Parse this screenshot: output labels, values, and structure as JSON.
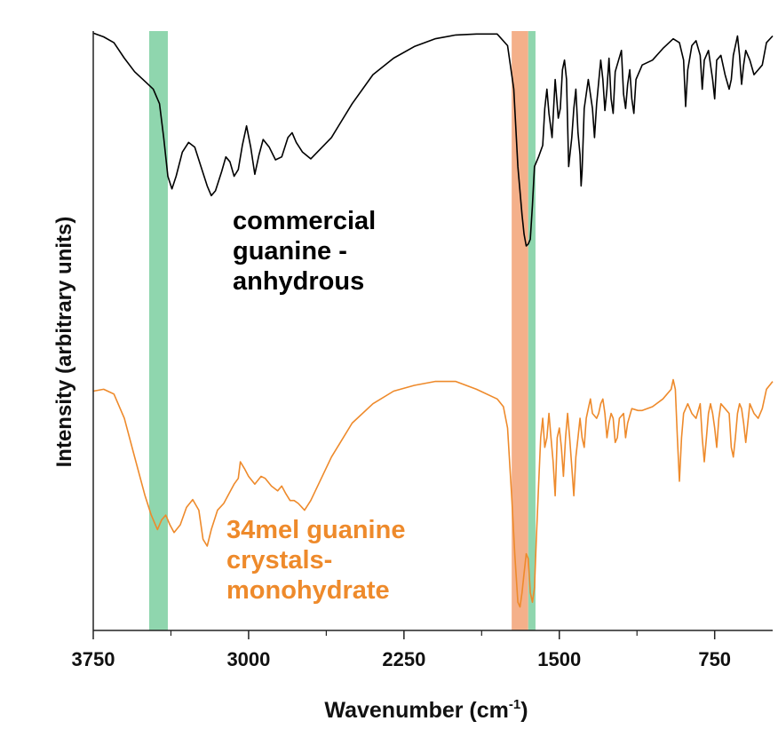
{
  "chart_data": {
    "type": "line",
    "xlabel": "Wavenumber (cm",
    "xlabel_sup": "-1",
    "xlabel_end": ")",
    "ylabel": "Intensity (arbitrary units)",
    "xlim": [
      3750,
      470
    ],
    "x_reversed": true,
    "major_ticks": [
      3750,
      3000,
      2250,
      1500,
      750
    ],
    "tick_labels": [
      "3750",
      "3000",
      "2250",
      "1500",
      "750"
    ],
    "minor_ticks": [
      3375,
      2625,
      1875,
      1125
    ],
    "highlight_bands": [
      {
        "from": 3480,
        "to": 3390,
        "color": "#8fd6ae"
      },
      {
        "from": 1730,
        "to": 1650,
        "color": "#f4b08a"
      },
      {
        "from": 1650,
        "to": 1615,
        "color": "#8fd6ae"
      }
    ],
    "annotations": [
      {
        "lines": [
          "commercial",
          "guanine -",
          "anhydrous"
        ],
        "color": "#000000"
      },
      {
        "lines": [
          "34mel guanine",
          "crystals-",
          "monohydrate"
        ],
        "color": "#ee8a2b"
      }
    ],
    "series": [
      {
        "color": "#000000",
        "points": [
          [
            3750,
            2
          ],
          [
            3700,
            6
          ],
          [
            3650,
            12
          ],
          [
            3600,
            28
          ],
          [
            3550,
            42
          ],
          [
            3500,
            52
          ],
          [
            3460,
            60
          ],
          [
            3430,
            75
          ],
          [
            3410,
            110
          ],
          [
            3390,
            150
          ],
          [
            3370,
            163
          ],
          [
            3350,
            150
          ],
          [
            3320,
            125
          ],
          [
            3290,
            115
          ],
          [
            3260,
            120
          ],
          [
            3230,
            140
          ],
          [
            3200,
            160
          ],
          [
            3180,
            170
          ],
          [
            3160,
            165
          ],
          [
            3130,
            145
          ],
          [
            3110,
            130
          ],
          [
            3090,
            135
          ],
          [
            3070,
            150
          ],
          [
            3050,
            143
          ],
          [
            3030,
            118
          ],
          [
            3010,
            98
          ],
          [
            2990,
            120
          ],
          [
            2970,
            148
          ],
          [
            2950,
            128
          ],
          [
            2930,
            112
          ],
          [
            2900,
            120
          ],
          [
            2870,
            133
          ],
          [
            2840,
            130
          ],
          [
            2810,
            110
          ],
          [
            2790,
            105
          ],
          [
            2770,
            115
          ],
          [
            2740,
            125
          ],
          [
            2700,
            132
          ],
          [
            2600,
            110
          ],
          [
            2500,
            75
          ],
          [
            2400,
            45
          ],
          [
            2300,
            28
          ],
          [
            2200,
            16
          ],
          [
            2100,
            8
          ],
          [
            2000,
            4
          ],
          [
            1900,
            3
          ],
          [
            1800,
            3
          ],
          [
            1750,
            15
          ],
          [
            1720,
            60
          ],
          [
            1700,
            140
          ],
          [
            1680,
            190
          ],
          [
            1670,
            210
          ],
          [
            1660,
            222
          ],
          [
            1650,
            220
          ],
          [
            1640,
            215
          ],
          [
            1630,
            180
          ],
          [
            1620,
            140
          ],
          [
            1600,
            130
          ],
          [
            1580,
            118
          ],
          [
            1570,
            80
          ],
          [
            1560,
            60
          ],
          [
            1550,
            85
          ],
          [
            1535,
            110
          ],
          [
            1520,
            50
          ],
          [
            1505,
            90
          ],
          [
            1495,
            80
          ],
          [
            1485,
            40
          ],
          [
            1475,
            30
          ],
          [
            1465,
            50
          ],
          [
            1455,
            140
          ],
          [
            1440,
            110
          ],
          [
            1430,
            80
          ],
          [
            1420,
            60
          ],
          [
            1410,
            105
          ],
          [
            1400,
            128
          ],
          [
            1395,
            160
          ],
          [
            1390,
            145
          ],
          [
            1380,
            80
          ],
          [
            1360,
            50
          ],
          [
            1340,
            80
          ],
          [
            1330,
            110
          ],
          [
            1320,
            75
          ],
          [
            1300,
            30
          ],
          [
            1290,
            50
          ],
          [
            1280,
            82
          ],
          [
            1270,
            60
          ],
          [
            1260,
            28
          ],
          [
            1250,
            70
          ],
          [
            1240,
            85
          ],
          [
            1230,
            42
          ],
          [
            1200,
            20
          ],
          [
            1190,
            65
          ],
          [
            1180,
            80
          ],
          [
            1170,
            55
          ],
          [
            1160,
            40
          ],
          [
            1150,
            70
          ],
          [
            1140,
            85
          ],
          [
            1130,
            50
          ],
          [
            1100,
            35
          ],
          [
            1050,
            30
          ],
          [
            1000,
            18
          ],
          [
            950,
            8
          ],
          [
            920,
            12
          ],
          [
            900,
            30
          ],
          [
            890,
            78
          ],
          [
            880,
            40
          ],
          [
            860,
            15
          ],
          [
            840,
            10
          ],
          [
            820,
            25
          ],
          [
            810,
            60
          ],
          [
            800,
            30
          ],
          [
            780,
            20
          ],
          [
            760,
            50
          ],
          [
            750,
            70
          ],
          [
            740,
            30
          ],
          [
            720,
            25
          ],
          [
            700,
            45
          ],
          [
            680,
            60
          ],
          [
            670,
            50
          ],
          [
            660,
            25
          ],
          [
            640,
            5
          ],
          [
            630,
            25
          ],
          [
            620,
            55
          ],
          [
            610,
            35
          ],
          [
            600,
            20
          ],
          [
            580,
            30
          ],
          [
            560,
            45
          ],
          [
            540,
            40
          ],
          [
            520,
            35
          ],
          [
            500,
            12
          ],
          [
            470,
            5
          ]
        ]
      },
      {
        "color": "#ee8a2b",
        "points": [
          [
            3750,
            372
          ],
          [
            3700,
            370
          ],
          [
            3650,
            375
          ],
          [
            3600,
            400
          ],
          [
            3550,
            440
          ],
          [
            3500,
            480
          ],
          [
            3470,
            500
          ],
          [
            3440,
            515
          ],
          [
            3420,
            505
          ],
          [
            3400,
            500
          ],
          [
            3380,
            510
          ],
          [
            3360,
            518
          ],
          [
            3330,
            510
          ],
          [
            3300,
            492
          ],
          [
            3270,
            484
          ],
          [
            3240,
            495
          ],
          [
            3220,
            525
          ],
          [
            3200,
            532
          ],
          [
            3180,
            515
          ],
          [
            3150,
            495
          ],
          [
            3120,
            488
          ],
          [
            3100,
            480
          ],
          [
            3070,
            468
          ],
          [
            3050,
            462
          ],
          [
            3040,
            445
          ],
          [
            3020,
            452
          ],
          [
            3000,
            460
          ],
          [
            2970,
            468
          ],
          [
            2940,
            460
          ],
          [
            2920,
            462
          ],
          [
            2890,
            470
          ],
          [
            2860,
            475
          ],
          [
            2840,
            470
          ],
          [
            2820,
            478
          ],
          [
            2800,
            485
          ],
          [
            2780,
            485
          ],
          [
            2760,
            488
          ],
          [
            2730,
            495
          ],
          [
            2700,
            485
          ],
          [
            2600,
            440
          ],
          [
            2500,
            405
          ],
          [
            2400,
            385
          ],
          [
            2300,
            372
          ],
          [
            2200,
            366
          ],
          [
            2100,
            362
          ],
          [
            2000,
            362
          ],
          [
            1900,
            370
          ],
          [
            1800,
            380
          ],
          [
            1770,
            388
          ],
          [
            1750,
            410
          ],
          [
            1730,
            480
          ],
          [
            1715,
            540
          ],
          [
            1700,
            590
          ],
          [
            1690,
            595
          ],
          [
            1680,
            580
          ],
          [
            1670,
            560
          ],
          [
            1660,
            540
          ],
          [
            1650,
            545
          ],
          [
            1640,
            580
          ],
          [
            1630,
            590
          ],
          [
            1620,
            575
          ],
          [
            1610,
            520
          ],
          [
            1600,
            470
          ],
          [
            1590,
            420
          ],
          [
            1580,
            400
          ],
          [
            1570,
            430
          ],
          [
            1560,
            420
          ],
          [
            1550,
            395
          ],
          [
            1540,
            420
          ],
          [
            1530,
            445
          ],
          [
            1520,
            480
          ],
          [
            1510,
            420
          ],
          [
            1500,
            410
          ],
          [
            1490,
            430
          ],
          [
            1480,
            460
          ],
          [
            1470,
            420
          ],
          [
            1460,
            395
          ],
          [
            1450,
            420
          ],
          [
            1440,
            450
          ],
          [
            1430,
            480
          ],
          [
            1420,
            440
          ],
          [
            1410,
            420
          ],
          [
            1400,
            400
          ],
          [
            1390,
            420
          ],
          [
            1380,
            430
          ],
          [
            1370,
            400
          ],
          [
            1360,
            390
          ],
          [
            1350,
            380
          ],
          [
            1340,
            395
          ],
          [
            1320,
            400
          ],
          [
            1310,
            395
          ],
          [
            1300,
            385
          ],
          [
            1290,
            380
          ],
          [
            1280,
            395
          ],
          [
            1270,
            420
          ],
          [
            1260,
            405
          ],
          [
            1250,
            395
          ],
          [
            1240,
            400
          ],
          [
            1230,
            425
          ],
          [
            1220,
            420
          ],
          [
            1210,
            400
          ],
          [
            1190,
            395
          ],
          [
            1180,
            420
          ],
          [
            1170,
            405
          ],
          [
            1150,
            390
          ],
          [
            1120,
            392
          ],
          [
            1100,
            392
          ],
          [
            1050,
            388
          ],
          [
            1000,
            380
          ],
          [
            960,
            370
          ],
          [
            950,
            360
          ],
          [
            940,
            370
          ],
          [
            930,
            420
          ],
          [
            920,
            465
          ],
          [
            910,
            420
          ],
          [
            900,
            395
          ],
          [
            880,
            385
          ],
          [
            860,
            395
          ],
          [
            840,
            400
          ],
          [
            820,
            385
          ],
          [
            810,
            420
          ],
          [
            800,
            445
          ],
          [
            790,
            420
          ],
          [
            780,
            395
          ],
          [
            770,
            385
          ],
          [
            760,
            395
          ],
          [
            750,
            410
          ],
          [
            740,
            430
          ],
          [
            730,
            400
          ],
          [
            720,
            385
          ],
          [
            700,
            390
          ],
          [
            680,
            395
          ],
          [
            670,
            430
          ],
          [
            660,
            440
          ],
          [
            650,
            420
          ],
          [
            640,
            395
          ],
          [
            630,
            385
          ],
          [
            620,
            390
          ],
          [
            610,
            405
          ],
          [
            600,
            425
          ],
          [
            590,
            405
          ],
          [
            580,
            385
          ],
          [
            560,
            395
          ],
          [
            540,
            400
          ],
          [
            520,
            390
          ],
          [
            500,
            370
          ],
          [
            470,
            362
          ]
        ]
      }
    ]
  }
}
